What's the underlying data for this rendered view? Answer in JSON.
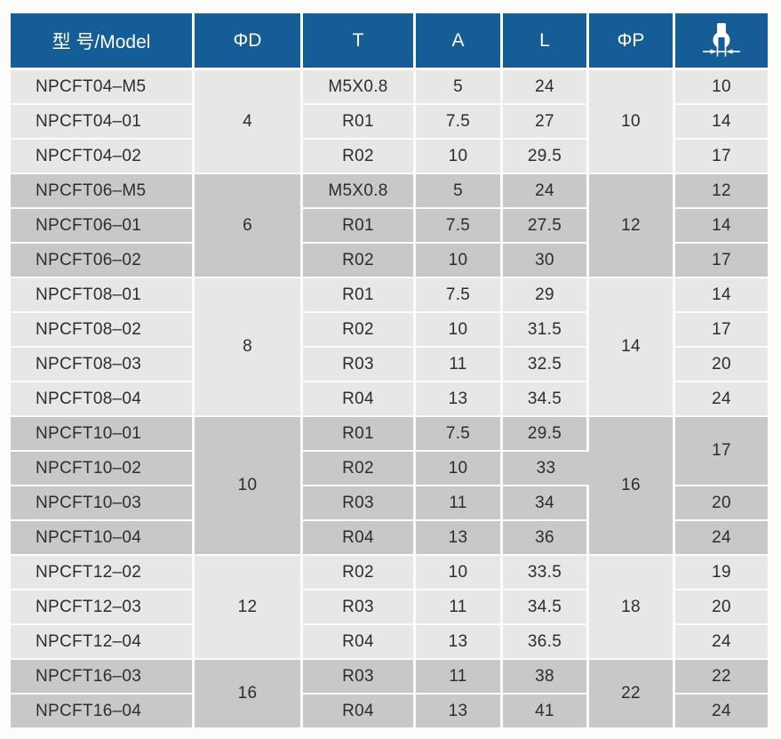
{
  "colors": {
    "header_bg": "#155d96",
    "header_text": "#ffffff",
    "group_light": "#e7e7e5",
    "group_dark": "#c8c8c6",
    "divider": "#fbfbfa",
    "text": "#2d2d2d"
  },
  "header": {
    "model_label": "型 号/Model",
    "phi_d_label": "ΦD",
    "t_label": "T",
    "a_label": "A",
    "l_label": "L",
    "phi_p_label": "ΦP",
    "wrench_icon": "wrench-flats-icon"
  },
  "groups": [
    {
      "shade": "light",
      "phi_d": "4",
      "phi_p": "10",
      "rows": [
        {
          "model": "NPCFT04–M5",
          "t": "M5X0.8",
          "a": "5",
          "l": "24"
        },
        {
          "model": "NPCFT04–01",
          "t": "R01",
          "a": "7.5",
          "l": "27"
        },
        {
          "model": "NPCFT04–02",
          "t": "R02",
          "a": "10",
          "l": "29.5"
        }
      ],
      "wrench": [
        {
          "value": "10",
          "span": 1
        },
        {
          "value": "14",
          "span": 1
        },
        {
          "value": "17",
          "span": 1
        }
      ]
    },
    {
      "shade": "dark",
      "phi_d": "6",
      "phi_p": "12",
      "rows": [
        {
          "model": "NPCFT06–M5",
          "t": "M5X0.8",
          "a": "5",
          "l": "24"
        },
        {
          "model": "NPCFT06–01",
          "t": "R01",
          "a": "7.5",
          "l": "27.5"
        },
        {
          "model": "NPCFT06–02",
          "t": "R02",
          "a": "10",
          "l": "30"
        }
      ],
      "wrench": [
        {
          "value": "12",
          "span": 1
        },
        {
          "value": "14",
          "span": 1
        },
        {
          "value": "17",
          "span": 1
        }
      ]
    },
    {
      "shade": "light",
      "phi_d": "8",
      "phi_p": "14",
      "rows": [
        {
          "model": "NPCFT08–01",
          "t": "R01",
          "a": "7.5",
          "l": "29"
        },
        {
          "model": "NPCFT08–02",
          "t": "R02",
          "a": "10",
          "l": "31.5"
        },
        {
          "model": "NPCFT08–03",
          "t": "R03",
          "a": "11",
          "l": "32.5"
        },
        {
          "model": "NPCFT08–04",
          "t": "R04",
          "a": "13",
          "l": "34.5"
        }
      ],
      "wrench": [
        {
          "value": "14",
          "span": 1
        },
        {
          "value": "17",
          "span": 1
        },
        {
          "value": "20",
          "span": 1
        },
        {
          "value": "24",
          "span": 1
        }
      ]
    },
    {
      "shade": "dark",
      "phi_d": "10",
      "phi_p": "16",
      "rows": [
        {
          "model": "NPCFT10–01",
          "t": "R01",
          "a": "7.5",
          "l": "29.5"
        },
        {
          "model": "NPCFT10–02",
          "t": "R02",
          "a": "10",
          "l": "33"
        },
        {
          "model": "NPCFT10–03",
          "t": "R03",
          "a": "11",
          "l": "34"
        },
        {
          "model": "NPCFT10–04",
          "t": "R04",
          "a": "13",
          "l": "36"
        }
      ],
      "wrench": [
        {
          "value": "17",
          "span": 2
        },
        {
          "value": "20",
          "span": 1
        },
        {
          "value": "24",
          "span": 1
        }
      ]
    },
    {
      "shade": "light",
      "phi_d": "12",
      "phi_p": "18",
      "rows": [
        {
          "model": "NPCFT12–02",
          "t": "R02",
          "a": "10",
          "l": "33.5"
        },
        {
          "model": "NPCFT12–03",
          "t": "R03",
          "a": "11",
          "l": "34.5"
        },
        {
          "model": "NPCFT12–04",
          "t": "R04",
          "a": "13",
          "l": "36.5"
        }
      ],
      "wrench": [
        {
          "value": "19",
          "span": 1
        },
        {
          "value": "20",
          "span": 1
        },
        {
          "value": "24",
          "span": 1
        }
      ]
    },
    {
      "shade": "dark",
      "phi_d": "16",
      "phi_p": "22",
      "rows": [
        {
          "model": "NPCFT16–03",
          "t": "R03",
          "a": "11",
          "l": "38"
        },
        {
          "model": "NPCFT16–04",
          "t": "R04",
          "a": "13",
          "l": "41"
        }
      ],
      "wrench": [
        {
          "value": "22",
          "span": 1
        },
        {
          "value": "24",
          "span": 1
        }
      ]
    }
  ]
}
